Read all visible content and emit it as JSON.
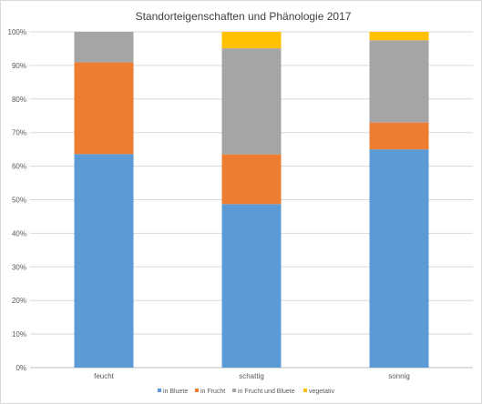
{
  "chart_data": {
    "type": "bar",
    "stacked": true,
    "percent": true,
    "title": "Standorteigenschaften und Phänologie 2017",
    "categories": [
      "feucht",
      "schattig",
      "sonnig"
    ],
    "series": [
      {
        "name": "in Bluete",
        "color": "#5B9BD5",
        "values": [
          63.6,
          48.7,
          65.0
        ]
      },
      {
        "name": "in Frucht",
        "color": "#ED7D31",
        "values": [
          27.3,
          14.8,
          8.0
        ]
      },
      {
        "name": "in Frucht und Bluete",
        "color": "#A5A5A5",
        "values": [
          9.1,
          31.6,
          24.5
        ]
      },
      {
        "name": "vegetativ",
        "color": "#FFC000",
        "values": [
          0,
          4.9,
          2.5
        ]
      }
    ],
    "ylim": [
      0,
      100
    ],
    "yticks": [
      "0%",
      "10%",
      "20%",
      "30%",
      "40%",
      "50%",
      "60%",
      "70%",
      "80%",
      "90%",
      "100%"
    ],
    "grid": true,
    "legend_position": "bottom"
  }
}
